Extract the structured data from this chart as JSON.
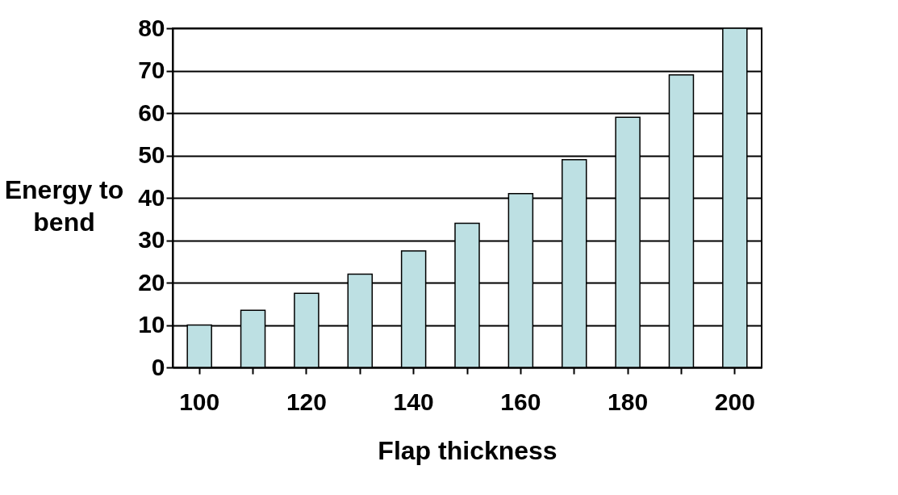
{
  "chart_data": {
    "type": "bar",
    "xlabel": "Flap thickness",
    "ylabel": "Energy to\nbend",
    "categories": [
      "100",
      null,
      "120",
      null,
      "140",
      null,
      "160",
      null,
      "180",
      null,
      "200"
    ],
    "values": [
      10,
      13.5,
      17.5,
      22,
      27.5,
      34,
      41,
      49,
      59,
      69,
      80
    ],
    "color": "#bde0e3",
    "ylim": [
      0,
      80
    ],
    "yticks": [
      0,
      10,
      20,
      30,
      40,
      50,
      60,
      70,
      80
    ],
    "grid": "y"
  }
}
